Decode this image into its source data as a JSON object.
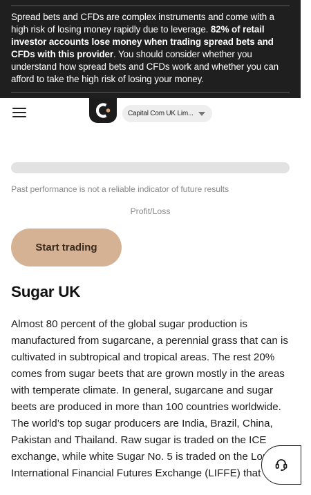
{
  "risk_banner": {
    "text_part1": "Spread bets and CFDs are complex instruments and come with a high risk of losing money rapidly due to leverage. ",
    "text_bold": "82% of retail investor accounts lose money when trading spread bets and CFDs with this provider",
    "text_part2": ". You should consider whether you understand how spread bets and CFDs work and whether you can afford to take the high risk of losing your money."
  },
  "header": {
    "menu_icon": "hamburger-icon",
    "logo_icon": "capital-com-logo",
    "entity_select_value": "Capital Com UK Lim..."
  },
  "performance": {
    "disclaimer": "Past performance is not a reliable indicator of future results",
    "profit_loss_label": "Profit/Loss"
  },
  "cta": {
    "start_trading_label": "Start trading"
  },
  "content": {
    "title": "Sugar UK",
    "description": "Almost 80 percent of the global sugar production is manufactured from sugarcane, a perennial grass that can is cultivated in subtropical and tropical areas. The rest 20% comes from sugar beets that are grown mostly in the areas with temperate climate. In general, sugarcane and sugar beets are produced in more than 100 countries worldwide. The world’s top sugar producers are India, Brazil, China, Pakistan and Thailand. Raw sugar is traded on the ICE exchange, while white Sugar No. 5 is traded on the London International Financial Futures Exchange (LIFFE) that"
  },
  "support": {
    "icon": "headset-icon"
  },
  "colors": {
    "banner_bg": "#1f1f1f",
    "cta_bg": "#d6b295",
    "logo_accent": "#d6a67c"
  }
}
